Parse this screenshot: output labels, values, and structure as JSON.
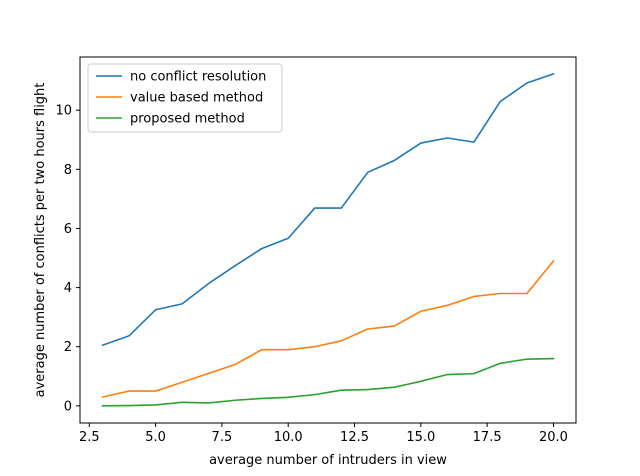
{
  "chart_data": {
    "type": "line",
    "title": "",
    "xlabel": "average number of intruders in view",
    "ylabel": "average number of conflicts per two hours flight",
    "xlim": [
      2.15,
      20.85
    ],
    "ylim": [
      -0.58,
      11.8
    ],
    "x_ticks": [
      2.5,
      5.0,
      7.5,
      10.0,
      12.5,
      15.0,
      17.5,
      20.0
    ],
    "x_tick_labels": [
      "2.5",
      "5.0",
      "7.5",
      "10.0",
      "12.5",
      "15.0",
      "17.5",
      "20.0"
    ],
    "y_ticks": [
      0,
      2,
      4,
      6,
      8,
      10
    ],
    "y_tick_labels": [
      "0",
      "2",
      "4",
      "6",
      "8",
      "10"
    ],
    "grid": false,
    "legend_position": "top-left",
    "x": [
      3,
      4,
      5,
      6,
      7,
      8,
      9,
      10,
      11,
      12,
      13,
      14,
      15,
      16,
      17,
      18,
      19,
      20
    ],
    "series": [
      {
        "name": "no conflict resolution",
        "color": "#1f77b4",
        "values": [
          2.05,
          2.37,
          3.25,
          3.45,
          4.14,
          4.74,
          5.32,
          5.67,
          6.69,
          6.69,
          7.9,
          8.3,
          8.89,
          9.06,
          8.92,
          10.3,
          10.92,
          11.23
        ]
      },
      {
        "name": "value based method",
        "color": "#ff7f0e",
        "values": [
          0.3,
          0.5,
          0.5,
          0.8,
          1.1,
          1.4,
          1.9,
          1.9,
          2.0,
          2.2,
          2.6,
          2.7,
          3.2,
          3.4,
          3.7,
          3.8,
          3.8,
          4.9
        ]
      },
      {
        "name": "proposed method",
        "color": "#2ca02c",
        "values": [
          0.0,
          0.01,
          0.03,
          0.12,
          0.1,
          0.19,
          0.25,
          0.29,
          0.38,
          0.53,
          0.55,
          0.63,
          0.83,
          1.06,
          1.09,
          1.44,
          1.58,
          1.6
        ]
      }
    ]
  }
}
